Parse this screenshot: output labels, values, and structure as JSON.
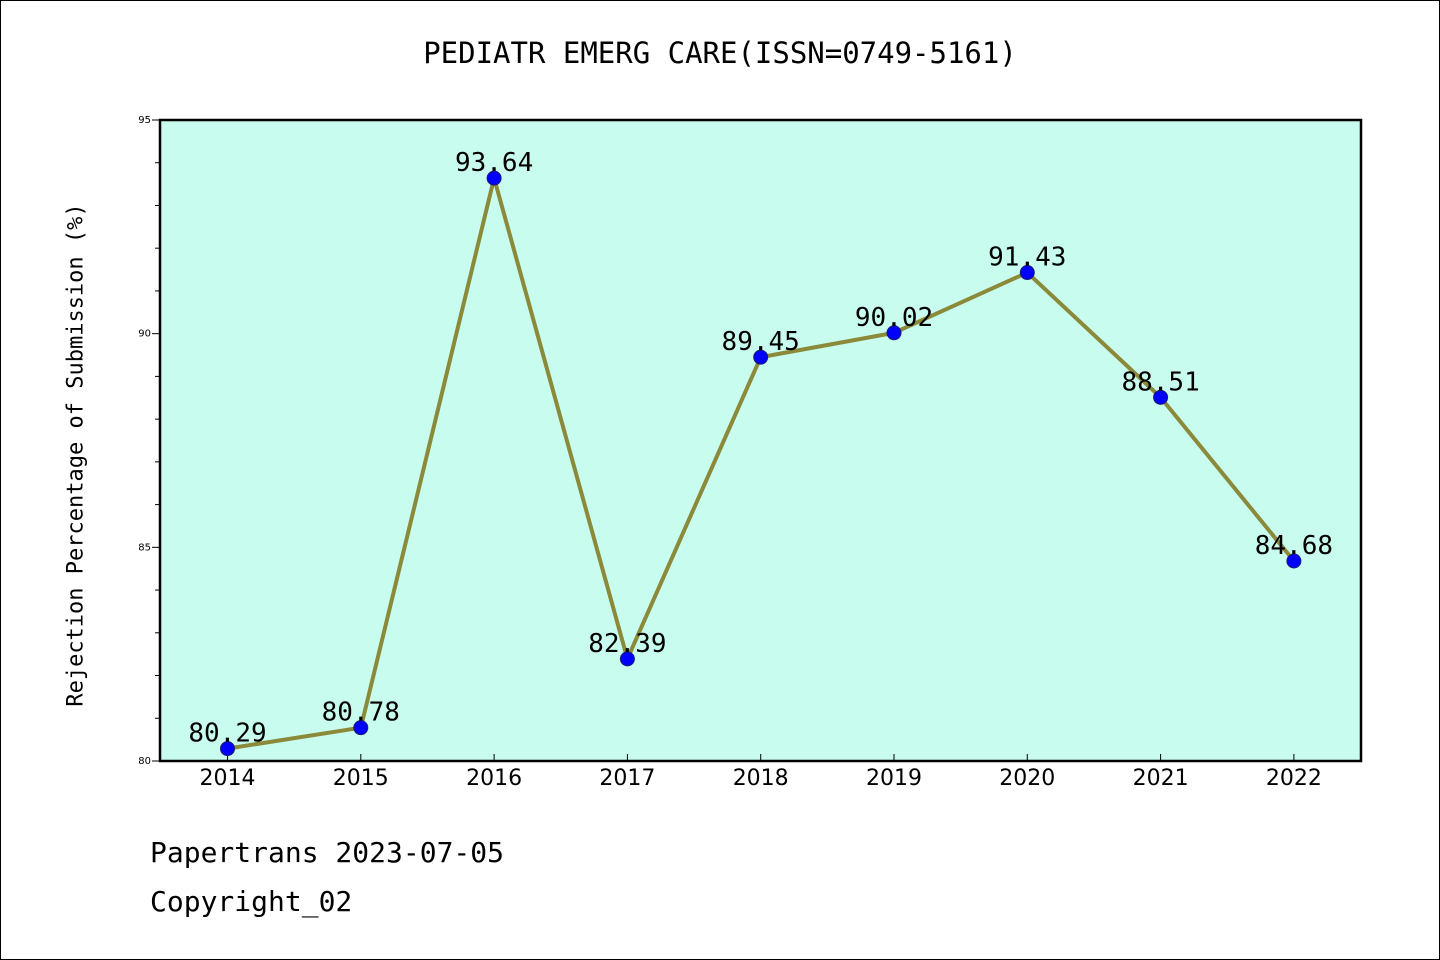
{
  "title": "PEDIATR EMERG CARE(ISSN=0749-5161)",
  "footer": {
    "date_line": "Papertrans 2023-07-05",
    "copyright": "Copyright_02"
  },
  "colors": {
    "plot_background": "#c8fcee",
    "line": "#8b8a3a",
    "marker": "#0000ff"
  },
  "chart_data": {
    "type": "line",
    "title": "PEDIATR EMERG CARE(ISSN=0749-5161)",
    "xlabel": "",
    "ylabel": "Rejection Percentage of Submission (%)",
    "categories": [
      "2014",
      "2015",
      "2016",
      "2017",
      "2018",
      "2019",
      "2020",
      "2021",
      "2022"
    ],
    "values": [
      80.29,
      80.78,
      93.64,
      82.39,
      89.45,
      90.02,
      91.43,
      88.51,
      84.68
    ],
    "data_labels": [
      "80.29",
      "80.78",
      "93.64",
      "82.39",
      "89.45",
      "90.02",
      "91.43",
      "88.51",
      "84.68"
    ],
    "ylim": [
      80,
      95
    ],
    "yticks": [
      "80",
      "85",
      "90",
      "95"
    ],
    "grid": false,
    "legend": "none"
  }
}
